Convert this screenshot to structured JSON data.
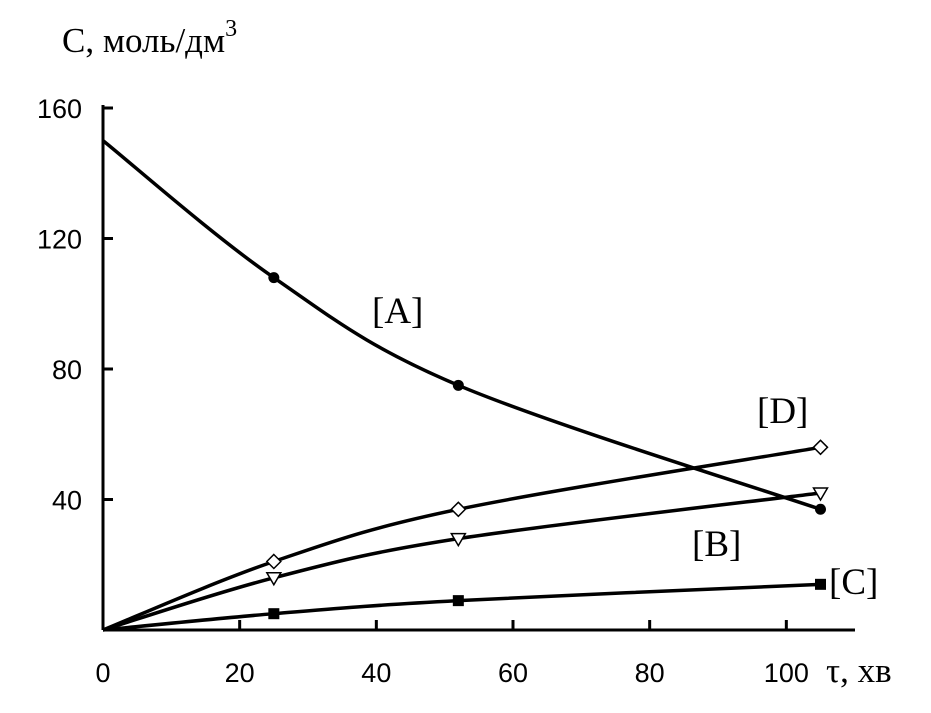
{
  "chart_data": {
    "type": "line",
    "ylabel": "C, моль/дм",
    "ylabel_sup": "3",
    "xlabel": "τ, хв",
    "xlim": [
      0,
      110
    ],
    "ylim": [
      0,
      160
    ],
    "x_ticks": [
      "0",
      "20",
      "40",
      "60",
      "80",
      "100"
    ],
    "y_ticks": [
      "40",
      "80",
      "120",
      "160"
    ],
    "grid": false,
    "legend": "none",
    "series": [
      {
        "name": "[A]",
        "marker": "filled-circle",
        "x": [
          0,
          25,
          52,
          105
        ],
        "y": [
          150,
          108,
          75,
          37
        ]
      },
      {
        "name": "[D]",
        "marker": "open-diamond",
        "x": [
          0,
          25,
          52,
          105
        ],
        "y": [
          0,
          21,
          37,
          56
        ]
      },
      {
        "name": "[B]",
        "marker": "open-triangle-down",
        "x": [
          0,
          25,
          52,
          105
        ],
        "y": [
          0,
          16,
          28,
          42
        ]
      },
      {
        "name": "[C]",
        "marker": "filled-square",
        "x": [
          0,
          25,
          52,
          105
        ],
        "y": [
          0,
          5,
          9,
          14
        ]
      }
    ]
  }
}
